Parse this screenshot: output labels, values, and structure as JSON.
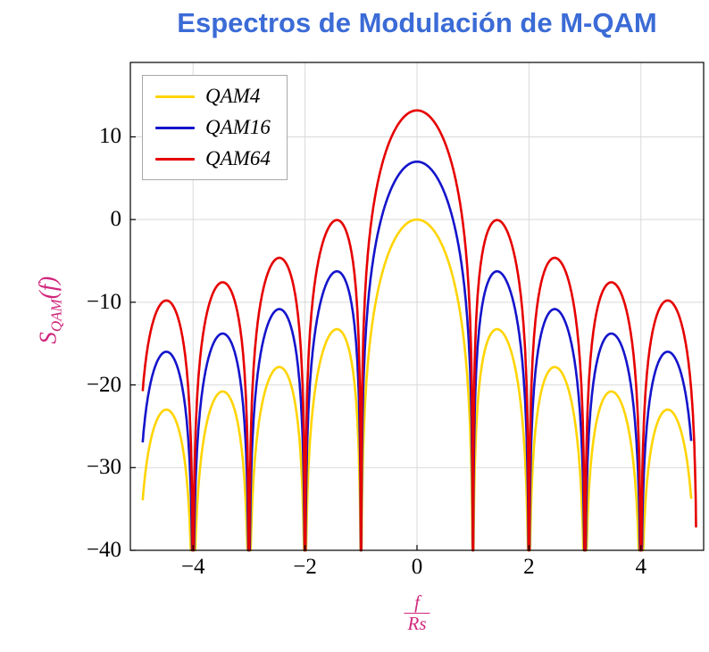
{
  "title": "Espectros de Modulación de M-QAM",
  "colors": {
    "title": "#3b6bd6",
    "axis_label": "#d0267c",
    "grid": "#d9d9d9",
    "frame": "#000000",
    "tick_text": "#000000",
    "legend_border": "#a8a8a8"
  },
  "axes": {
    "ylabel": {
      "main": "S",
      "sub": "QAM",
      "rest": "(f)"
    },
    "xlabel": {
      "numerator": "f",
      "denominator": "Rs"
    }
  },
  "chart_data": {
    "type": "line",
    "title": "Espectros de Modulación de M-QAM",
    "xlabel": "f/Rs",
    "ylabel": "S_QAM(f)",
    "xlim": [
      -5.12,
      5.12
    ],
    "ylim": [
      -40,
      19
    ],
    "grid": "major",
    "legend_position": "top-left",
    "function": "y_db = offset_db + 20*log10(|sin(pi*x)/(pi*x)|), clipped below at -40 dB",
    "nulls_at": [
      -4,
      -3,
      -2,
      -1,
      1,
      2,
      3,
      4
    ],
    "sidelobe_peaks_db_relative": [
      -13.3,
      -17.8,
      -20.8,
      -23.0
    ],
    "xticks": [
      {
        "value": -4,
        "label": "−4"
      },
      {
        "value": -2,
        "label": "−2"
      },
      {
        "value": 0,
        "label": "0"
      },
      {
        "value": 2,
        "label": "2"
      },
      {
        "value": 4,
        "label": "4"
      }
    ],
    "yticks": [
      {
        "value": 10,
        "label": "10"
      },
      {
        "value": 0,
        "label": "0"
      },
      {
        "value": -10,
        "label": "−10"
      },
      {
        "value": -20,
        "label": "−20"
      },
      {
        "value": -30,
        "label": "−30"
      },
      {
        "value": -40,
        "label": "−40"
      }
    ],
    "series": [
      {
        "name": "QAM4",
        "color": "#ffd400",
        "offset_db": 0.0,
        "peak_db": 0.0,
        "x_range": [
          -4.9,
          4.9
        ]
      },
      {
        "name": "QAM16",
        "color": "#1414cc",
        "offset_db": 7.0,
        "peak_db": 7.0,
        "x_range": [
          -4.9,
          4.9
        ]
      },
      {
        "name": "QAM64",
        "color": "#e60000",
        "offset_db": 13.2,
        "peak_db": 13.2,
        "x_range": [
          -4.9,
          4.985
        ]
      }
    ]
  }
}
